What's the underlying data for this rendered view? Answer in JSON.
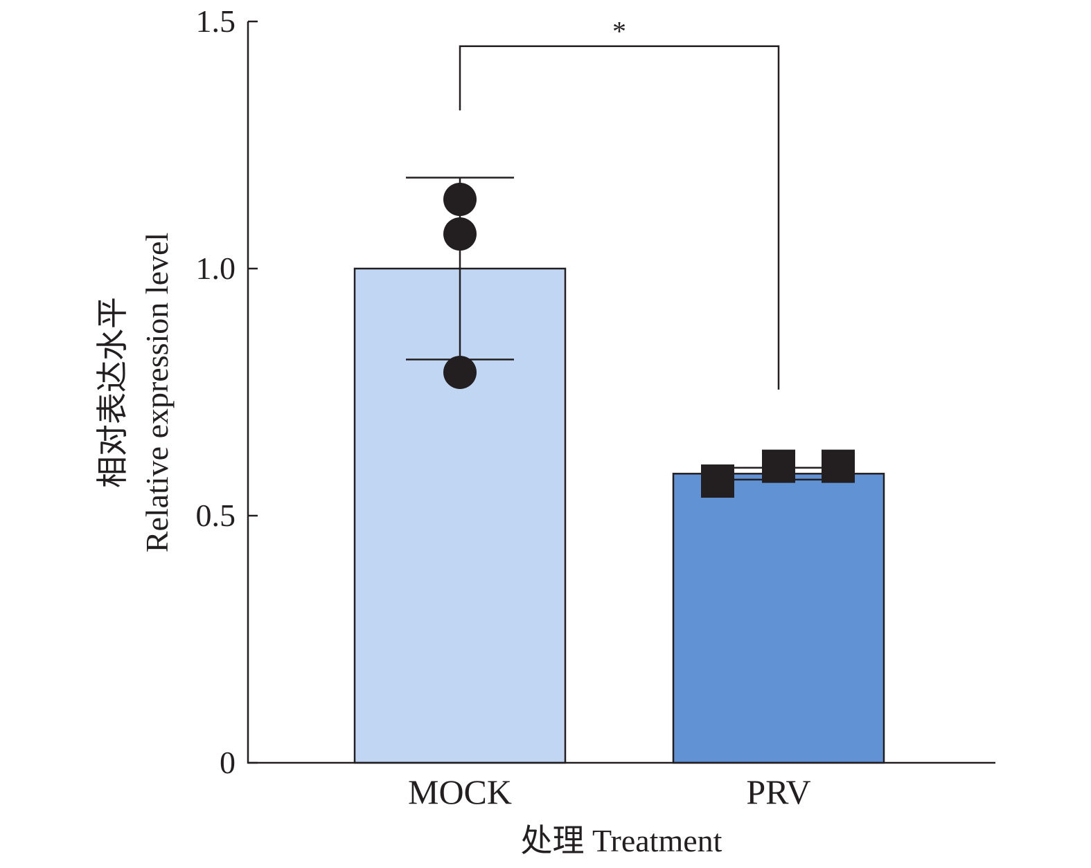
{
  "chart_data": {
    "type": "bar",
    "categories": [
      "MOCK",
      "PRV"
    ],
    "values": [
      1.0,
      0.585
    ],
    "errors": [
      0.184,
      0.012
    ],
    "points": [
      [
        1.14,
        1.07,
        0.79
      ],
      [
        0.57,
        0.6,
        0.6
      ]
    ],
    "point_markers": [
      "circle",
      "square"
    ],
    "colors": [
      "#c0d6f2",
      "#6193d4"
    ],
    "ylim": [
      0,
      1.5
    ],
    "yticks": [
      0,
      0.5,
      1.0,
      1.5
    ],
    "ytick_labels": [
      "0",
      "0.5",
      "1.0",
      "1.5"
    ],
    "ylabel_zh": "相对表达水平",
    "ylabel": "Relative expression level",
    "xlabel": "处理 Treatment",
    "significance": {
      "label": "*",
      "from": 0,
      "to": 1,
      "bracket_y": 1.45,
      "left_drop_to": 1.32,
      "right_drop_to": 0.755
    }
  }
}
